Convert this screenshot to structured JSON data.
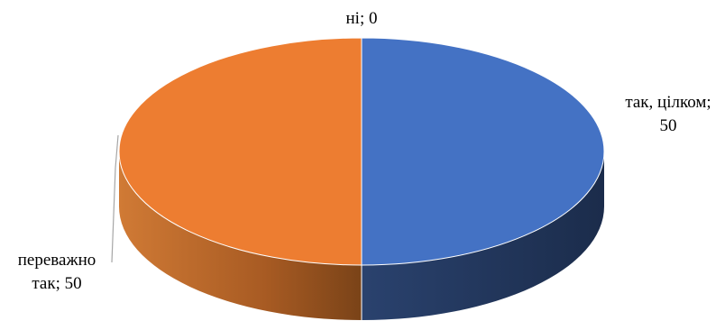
{
  "chart_data": {
    "type": "pie",
    "style": "3d",
    "slices": [
      {
        "label": "так, цілком",
        "value": 50,
        "color": "#4472C4",
        "label_lines": [
          "так, цілком;",
          "50"
        ]
      },
      {
        "label": "переважно так",
        "value": 50,
        "color": "#ED7D31",
        "label_lines": [
          "переважно",
          "так; 50"
        ]
      },
      {
        "label": "ні",
        "value": 0,
        "color": "#A5A5A5",
        "label_lines": [
          "ні; 0"
        ]
      }
    ],
    "legend": "none"
  }
}
